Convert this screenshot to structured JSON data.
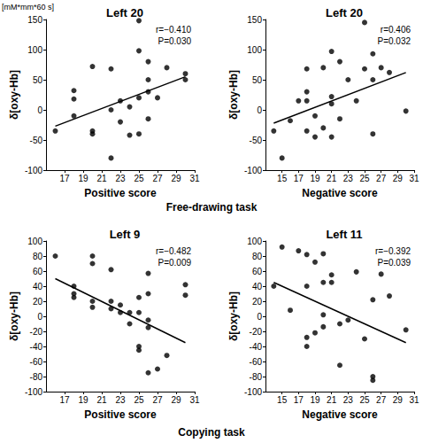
{
  "figure": {
    "unit_label": "[mM*mm*60 s]",
    "groups": [
      "Free-drawing task",
      "Copying task"
    ]
  },
  "chart_data": [
    {
      "type": "scatter",
      "title": "Left 20",
      "x_label": "Positive score",
      "y_label": "δ[oxy-Hb]",
      "annotations": [
        "r=−0.410",
        "P=0.030"
      ],
      "color": "#000000",
      "marker": "circle",
      "grid": false,
      "xlim": [
        15,
        31
      ],
      "xticks": [
        17,
        19,
        21,
        23,
        25,
        27,
        29,
        31
      ],
      "ylim": [
        -100,
        150
      ],
      "yticks": [
        -100,
        -50,
        0,
        50,
        100,
        150
      ],
      "x": [
        16,
        18,
        18,
        18,
        20,
        20,
        20,
        22,
        22,
        22,
        23,
        23,
        24,
        24,
        25,
        25,
        25,
        25,
        26,
        26,
        26,
        26,
        27,
        28,
        30,
        30
      ],
      "values": [
        -35,
        32,
        18,
        -10,
        72,
        -35,
        -40,
        68,
        0,
        -80,
        15,
        -20,
        -42,
        5,
        98,
        148,
        20,
        -40,
        80,
        50,
        -15,
        30,
        20,
        70,
        60,
        50
      ],
      "trend": {
        "x": [
          16,
          30
        ],
        "values": [
          -27,
          55
        ]
      }
    },
    {
      "type": "scatter",
      "title": "Left 20",
      "x_label": "Negative score",
      "y_label": "δ[oxy-Hb]",
      "annotations": [
        "r=0.406",
        "P=0.032"
      ],
      "color": "#000000",
      "marker": "circle",
      "grid": false,
      "xlim": [
        13,
        31
      ],
      "xticks": [
        15,
        17,
        19,
        21,
        23,
        25,
        27,
        29,
        31
      ],
      "ylim": [
        -100,
        150
      ],
      "yticks": [
        -100,
        -50,
        0,
        50,
        100,
        150
      ],
      "x": [
        14,
        15,
        16,
        17,
        18,
        18,
        18,
        18,
        19,
        19,
        20,
        20,
        21,
        21,
        21,
        21,
        22,
        22,
        23,
        24,
        25,
        25,
        26,
        26,
        26,
        27,
        28,
        30
      ],
      "values": [
        -35,
        -80,
        -18,
        15,
        68,
        30,
        15,
        -35,
        -10,
        -45,
        70,
        -30,
        22,
        10,
        -45,
        97,
        80,
        -15,
        50,
        15,
        145,
        68,
        93,
        -40,
        50,
        70,
        62,
        -2
      ],
      "trend": {
        "x": [
          14,
          30
        ],
        "values": [
          -22,
          62
        ]
      }
    },
    {
      "type": "scatter",
      "title": "Left 9",
      "x_label": "Positive score",
      "y_label": "δ[oxy-Hb]",
      "annotations": [
        "r=−0.482",
        "P=0.009"
      ],
      "color": "#000000",
      "marker": "circle",
      "grid": false,
      "xlim": [
        15,
        31
      ],
      "xticks": [
        17,
        19,
        21,
        23,
        25,
        27,
        29,
        31
      ],
      "ylim": [
        -100,
        100
      ],
      "yticks": [
        -100,
        -80,
        -60,
        -40,
        -20,
        0,
        20,
        40,
        60,
        80,
        100
      ],
      "x": [
        16,
        18,
        18,
        18,
        20,
        20,
        20,
        20,
        22,
        22,
        22,
        23,
        23,
        24,
        24,
        25,
        25,
        25,
        25,
        26,
        26,
        26,
        26,
        26,
        27,
        28,
        30,
        30
      ],
      "values": [
        80,
        40,
        30,
        25,
        80,
        70,
        20,
        12,
        62,
        20,
        10,
        5,
        15,
        5,
        -10,
        5,
        25,
        -40,
        -45,
        57,
        30,
        -5,
        -75,
        -15,
        -70,
        -52,
        42,
        28
      ],
      "trend": {
        "x": [
          16,
          30
        ],
        "values": [
          50,
          -35
        ]
      }
    },
    {
      "type": "scatter",
      "title": "Left 11",
      "x_label": "Negative score",
      "y_label": "δ[oxy-Hb]",
      "annotations": [
        "r=−0.392",
        "P=0.039"
      ],
      "color": "#000000",
      "marker": "circle",
      "grid": false,
      "xlim": [
        13,
        31
      ],
      "xticks": [
        15,
        17,
        19,
        21,
        23,
        25,
        27,
        29,
        31
      ],
      "ylim": [
        -100,
        100
      ],
      "yticks": [
        -100,
        -80,
        -60,
        -40,
        -20,
        0,
        20,
        40,
        60,
        80,
        100
      ],
      "x": [
        14,
        15,
        16,
        17,
        18,
        18,
        18,
        18,
        19,
        19,
        20,
        20,
        20,
        20,
        21,
        21,
        22,
        22,
        23,
        24,
        25,
        26,
        26,
        26,
        27,
        28,
        30
      ],
      "values": [
        40,
        92,
        8,
        87,
        82,
        40,
        -28,
        -40,
        72,
        -22,
        83,
        45,
        2,
        -14,
        45,
        55,
        -65,
        -10,
        -5,
        59,
        -30,
        22,
        -80,
        -85,
        56,
        27,
        -18
      ],
      "trend": {
        "x": [
          14,
          30
        ],
        "values": [
          45,
          -35
        ]
      }
    }
  ]
}
